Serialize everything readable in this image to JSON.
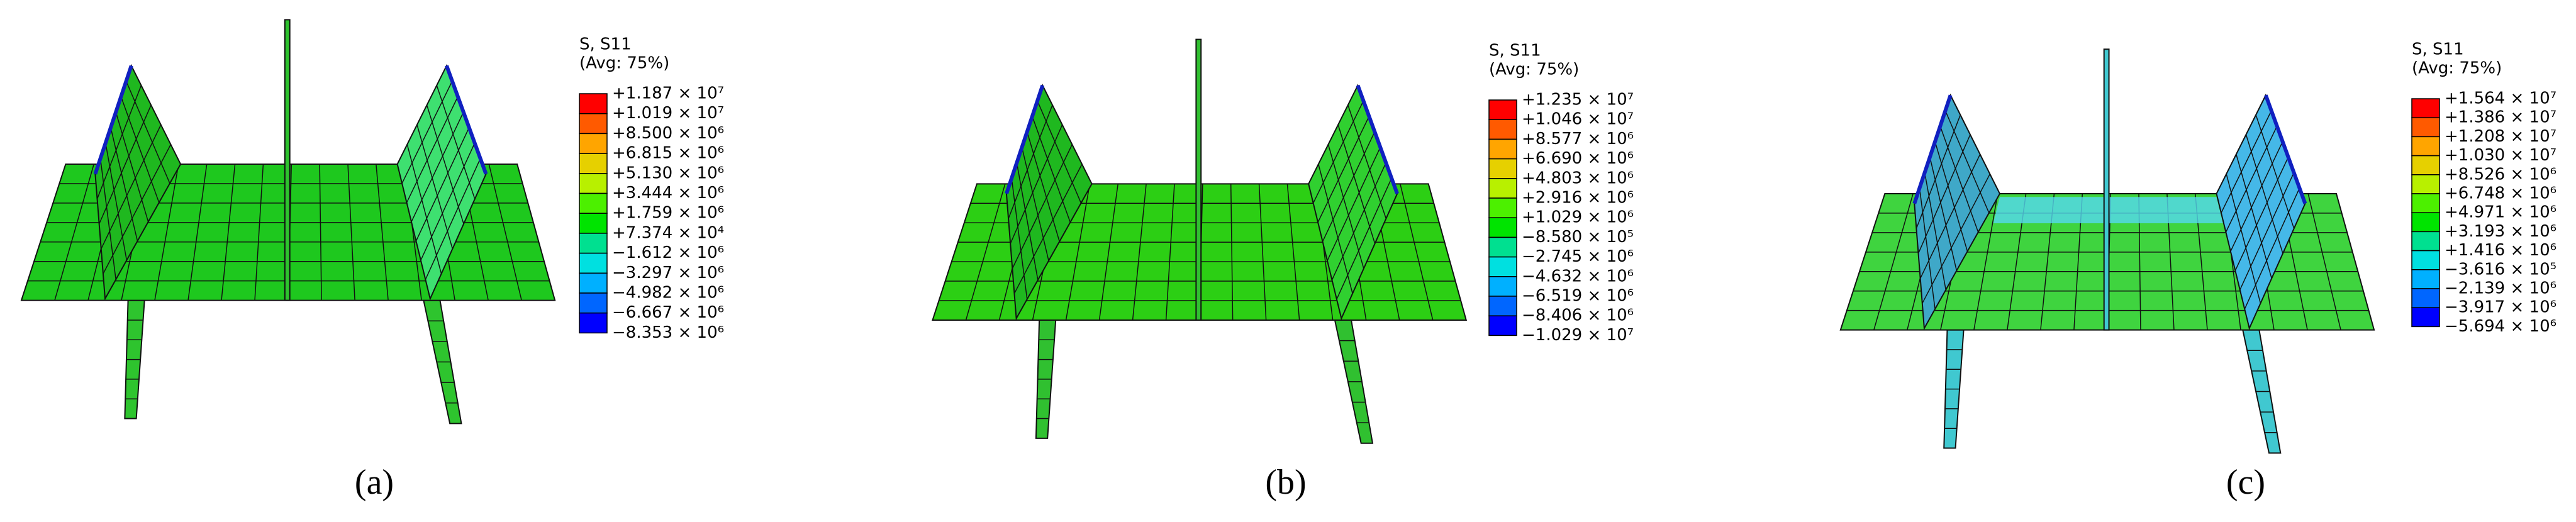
{
  "panels": [
    {
      "caption": "(a)",
      "legend_title": "S, S11",
      "legend_subtitle": "(Avg: 75%)",
      "legend_labels": [
        "+1.187 × 10⁷",
        "+1.019 × 10⁷",
        "+8.500 × 10⁶",
        "+6.815 × 10⁶",
        "+5.130 × 10⁶",
        "+3.444 × 10⁶",
        "+1.759 × 10⁶",
        "+7.374 × 10⁴",
        "−1.612 × 10⁶",
        "−3.297 × 10⁶",
        "−4.982 × 10⁶",
        "−6.667 × 10⁶",
        "−8.353 × 10⁶"
      ]
    },
    {
      "caption": "(b)",
      "legend_title": "S, S11",
      "legend_subtitle": "(Avg: 75%)",
      "legend_labels": [
        "+1.235 × 10⁷",
        "+1.046 × 10⁷",
        "+8.577 × 10⁶",
        "+6.690 × 10⁶",
        "+4.803 × 10⁶",
        "+2.916 × 10⁶",
        "+1.029 × 10⁶",
        "−8.580 × 10⁵",
        "−2.745 × 10⁶",
        "−4.632 × 10⁶",
        "−6.519 × 10⁶",
        "−8.406 × 10⁶",
        "−1.029 × 10⁷"
      ]
    },
    {
      "caption": "(c)",
      "legend_title": "S, S11",
      "legend_subtitle": "(Avg: 75%)",
      "legend_labels": [
        "+1.564 × 10⁷",
        "+1.386 × 10⁷",
        "+1.208 × 10⁷",
        "+1.030 × 10⁷",
        "+8.526 × 10⁶",
        "+6.748 × 10⁶",
        "+4.971 × 10⁶",
        "+3.193 × 10⁶",
        "+1.416 × 10⁶",
        "−3.616 × 10⁵",
        "−2.139 × 10⁶",
        "−3.917 × 10⁶",
        "−5.694 × 10⁶"
      ]
    }
  ]
}
